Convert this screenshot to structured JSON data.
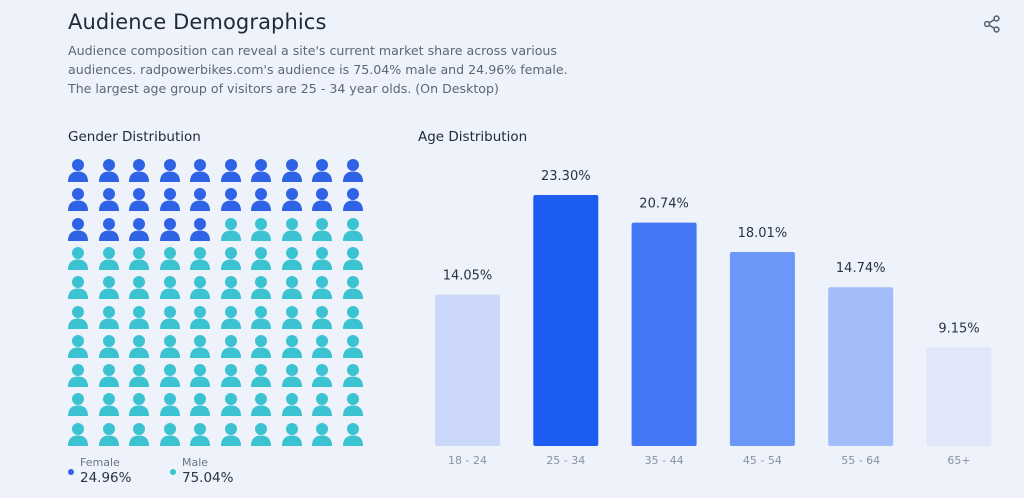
{
  "header": {
    "title": "Audience Demographics",
    "description": "Audience composition can reveal a site's current market share across various audiences. radpowerbikes.com's audience is 75.04% male and 24.96% female. The largest age group of visitors are 25 - 34 year olds. (On Desktop)",
    "share_icon": "share-icon"
  },
  "gender": {
    "label": "Gender Distribution",
    "female_label": "Female",
    "female_value": "24.96%",
    "male_label": "Male",
    "male_value": "75.04%",
    "female_icons": 25,
    "total_icons": 100,
    "female_color": "#2f63e6",
    "male_color": "#3cc3d2"
  },
  "age": {
    "label": "Age Distribution"
  },
  "chart_data": {
    "type": "bar",
    "title": "Age Distribution",
    "categories": [
      "18 - 24",
      "25 - 34",
      "35 - 44",
      "45 - 54",
      "55 - 64",
      "65+"
    ],
    "values": [
      14.05,
      23.3,
      20.74,
      18.01,
      14.74,
      9.15
    ],
    "value_labels": [
      "14.05%",
      "23.30%",
      "20.74%",
      "18.01%",
      "14.74%",
      "9.15%"
    ],
    "colors": [
      "#ccd8fa",
      "#1d5cf2",
      "#4377f6",
      "#6c96f8",
      "#a3bdfa",
      "#e0e7fb"
    ],
    "ylim": [
      0,
      23.3
    ],
    "grid": false
  }
}
